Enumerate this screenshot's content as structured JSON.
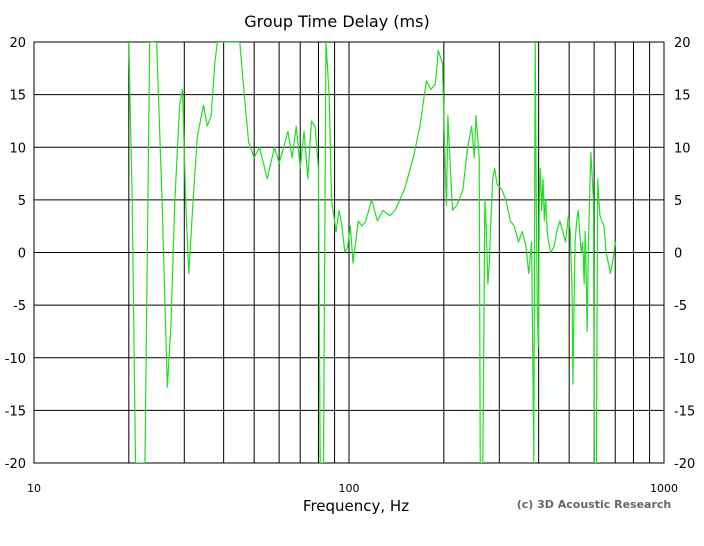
{
  "chart_data": {
    "type": "line",
    "title": "Group Time Delay (ms)",
    "xlabel": "Frequency, Hz",
    "ylabel": "",
    "credit": "(c) 3D Acoustic Research",
    "x_scale": "log",
    "xlim": [
      10,
      1000
    ],
    "ylim": [
      -20,
      20
    ],
    "x_ticks": [
      10,
      100,
      1000
    ],
    "x_tick_labels": [
      "10",
      "100",
      "1000"
    ],
    "y_ticks": [
      20,
      15,
      10,
      5,
      0,
      -5,
      -10,
      -15,
      -20
    ],
    "y_tick_labels": [
      "20",
      "15",
      "10",
      "5",
      "0",
      "-5",
      "-10",
      "-15",
      "-20"
    ],
    "grid": true,
    "series_color": "#22dd22",
    "series": [
      {
        "points": [
          [
            20,
            20
          ],
          [
            20.5,
            5
          ],
          [
            21,
            -20
          ],
          [
            22.5,
            -20
          ],
          [
            23.3,
            20
          ],
          [
            24.5,
            20
          ],
          [
            25.5,
            5
          ],
          [
            26.5,
            -12.8
          ],
          [
            27.2,
            -7
          ],
          [
            28,
            5
          ],
          [
            29,
            14
          ],
          [
            29.6,
            15.5
          ],
          [
            30.3,
            5
          ],
          [
            31,
            -2
          ],
          [
            32,
            5
          ],
          [
            33,
            11
          ],
          [
            34.5,
            14
          ],
          [
            35.5,
            12
          ],
          [
            36.5,
            13
          ],
          [
            37.5,
            18
          ],
          [
            38.2,
            20
          ],
          [
            45,
            20
          ],
          [
            46.5,
            15
          ],
          [
            48,
            10.5
          ],
          [
            50,
            9
          ],
          [
            52,
            10
          ],
          [
            55,
            7
          ],
          [
            58,
            10
          ],
          [
            60,
            8.5
          ],
          [
            62,
            10
          ],
          [
            64,
            11.5
          ],
          [
            66,
            9
          ],
          [
            68,
            12
          ],
          [
            70,
            8
          ],
          [
            72,
            11.5
          ],
          [
            74,
            7
          ],
          [
            76,
            12.5
          ],
          [
            78,
            12
          ],
          [
            80,
            8
          ],
          [
            81,
            -20
          ],
          [
            83,
            -20
          ],
          [
            84.5,
            20
          ],
          [
            86.5,
            15
          ],
          [
            88,
            5
          ],
          [
            89,
            4
          ],
          [
            91,
            2
          ],
          [
            93,
            4
          ],
          [
            95,
            2.5
          ],
          [
            97,
            0
          ],
          [
            99,
            0.5
          ],
          [
            101,
            2.5
          ],
          [
            103,
            -1
          ],
          [
            105,
            1
          ],
          [
            107,
            3
          ],
          [
            110,
            2.5
          ],
          [
            113,
            3
          ],
          [
            118,
            5
          ],
          [
            123,
            3
          ],
          [
            128,
            4
          ],
          [
            135,
            3.5
          ],
          [
            140,
            4
          ],
          [
            150,
            6
          ],
          [
            160,
            9
          ],
          [
            168,
            12
          ],
          [
            176,
            16.3
          ],
          [
            182,
            15.5
          ],
          [
            188,
            16
          ],
          [
            192,
            19.2
          ],
          [
            198,
            18
          ],
          [
            202,
            8
          ],
          [
            204,
            4.5
          ],
          [
            206,
            13
          ],
          [
            209,
            9
          ],
          [
            213,
            4
          ],
          [
            220,
            4.5
          ],
          [
            230,
            6
          ],
          [
            238,
            10
          ],
          [
            245,
            12
          ],
          [
            250,
            9
          ],
          [
            253,
            13
          ],
          [
            256,
            11
          ],
          [
            259,
            9
          ],
          [
            261,
            -20
          ],
          [
            266,
            -20
          ],
          [
            270,
            5
          ],
          [
            273,
            2
          ],
          [
            276,
            -3
          ],
          [
            279,
            -1
          ],
          [
            282,
            3
          ],
          [
            286,
            7
          ],
          [
            290,
            8
          ],
          [
            295,
            6.5
          ],
          [
            305,
            6
          ],
          [
            315,
            5
          ],
          [
            325,
            3
          ],
          [
            335,
            2.5
          ],
          [
            345,
            1
          ],
          [
            355,
            2
          ],
          [
            365,
            0.5
          ],
          [
            372,
            -2
          ],
          [
            380,
            1
          ],
          [
            386,
            -20
          ],
          [
            390,
            20
          ],
          [
            393,
            5
          ],
          [
            396,
            -5
          ],
          [
            399,
            -9
          ],
          [
            402,
            5
          ],
          [
            405,
            8
          ],
          [
            409,
            4
          ],
          [
            413,
            7
          ],
          [
            417,
            3
          ],
          [
            421,
            5
          ],
          [
            426,
            2
          ],
          [
            430,
            1
          ],
          [
            437,
            0
          ],
          [
            447,
            0.5
          ],
          [
            457,
            2
          ],
          [
            467,
            3
          ],
          [
            477,
            2
          ],
          [
            487,
            1
          ],
          [
            497,
            3.5
          ],
          [
            504,
            2
          ],
          [
            510,
            -3
          ],
          [
            514,
            -12.5
          ],
          [
            518,
            -5
          ],
          [
            522,
            1
          ],
          [
            528,
            3
          ],
          [
            534,
            4
          ],
          [
            540,
            2
          ],
          [
            546,
            0
          ],
          [
            552,
            1
          ],
          [
            558,
            -3
          ],
          [
            562,
            2
          ],
          [
            566,
            -2
          ],
          [
            570,
            -7.5
          ],
          [
            575,
            0
          ],
          [
            580,
            5
          ],
          [
            586,
            9.5
          ],
          [
            592,
            7
          ],
          [
            597,
            5
          ],
          [
            601,
            -20
          ],
          [
            610,
            -20
          ],
          [
            616,
            7
          ],
          [
            621,
            5
          ],
          [
            626,
            3.5
          ],
          [
            635,
            3
          ],
          [
            645,
            2.5
          ],
          [
            655,
            0
          ],
          [
            666,
            -1
          ],
          [
            676,
            -2
          ],
          [
            690,
            -0.5
          ],
          [
            700,
            1
          ],
          [
            705,
            1
          ]
        ]
      }
    ]
  }
}
